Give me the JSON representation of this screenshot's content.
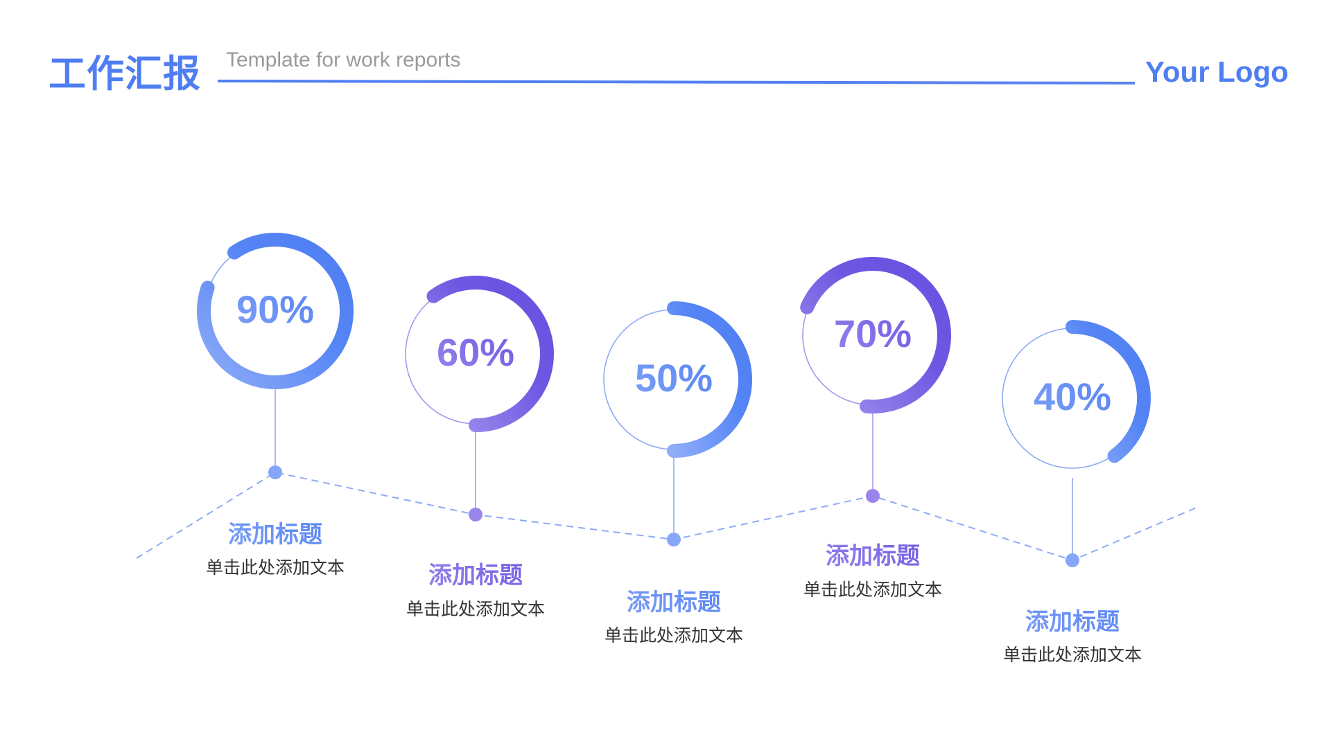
{
  "header": {
    "title": "工作汇报",
    "subtitle": "Template for work reports",
    "logo": "Your Logo"
  },
  "colors": {
    "blue": "#4f7ef2",
    "blue_light": "#86a6f7",
    "purple": "#6a4fe0",
    "purple_light": "#9f8ef0",
    "text": "#333333"
  },
  "items": [
    {
      "percent": 90,
      "label": "90%",
      "title": "添加标题",
      "text": "单击此处添加文本",
      "theme": "blue"
    },
    {
      "percent": 60,
      "label": "60%",
      "title": "添加标题",
      "text": "单击此处添加文本",
      "theme": "purple"
    },
    {
      "percent": 50,
      "label": "50%",
      "title": "添加标题",
      "text": "单击此处添加文本",
      "theme": "blue"
    },
    {
      "percent": 70,
      "label": "70%",
      "title": "添加标题",
      "text": "单击此处添加文本",
      "theme": "purple"
    },
    {
      "percent": 40,
      "label": "40%",
      "title": "添加标题",
      "text": "单击此处添加文本",
      "theme": "blue"
    }
  ]
}
